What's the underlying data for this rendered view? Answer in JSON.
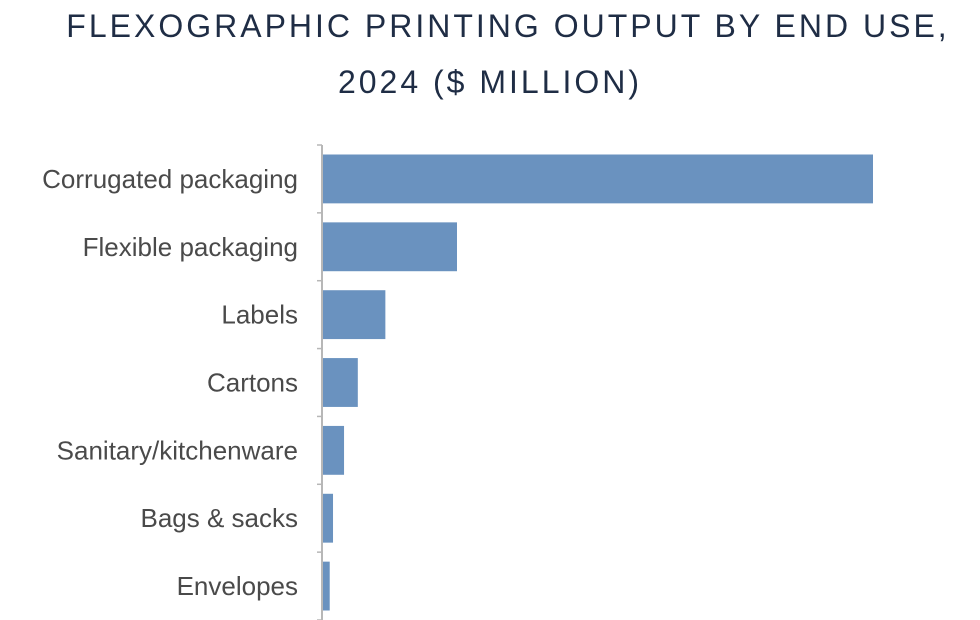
{
  "title_lines": [
    "FLEXOGRAPHIC PRINTING OUTPUT BY END USE,",
    "2024 ($ MILLION)"
  ],
  "colors": {
    "bar": "#6a92bf",
    "axis": "#b7b7b7",
    "title": "#1f2d45",
    "label": "#4a4a4a"
  },
  "chart_data": {
    "type": "bar",
    "orientation": "horizontal",
    "title": "FLEXOGRAPHIC PRINTING OUTPUT BY END USE, 2024 ($ MILLION)",
    "categories": [
      "Corrugated packaging",
      "Flexible packaging",
      "Labels",
      "Cartons",
      "Sanitary/kitchenware",
      "Bags & sacks",
      "Envelopes"
    ],
    "values": [
      100,
      24.5,
      11.5,
      6.5,
      4,
      2,
      1.4
    ],
    "xlim": [
      0,
      100
    ],
    "xlabel": "",
    "ylabel": "",
    "grid": false,
    "legend": "none",
    "value_axis_labels_shown": false
  }
}
